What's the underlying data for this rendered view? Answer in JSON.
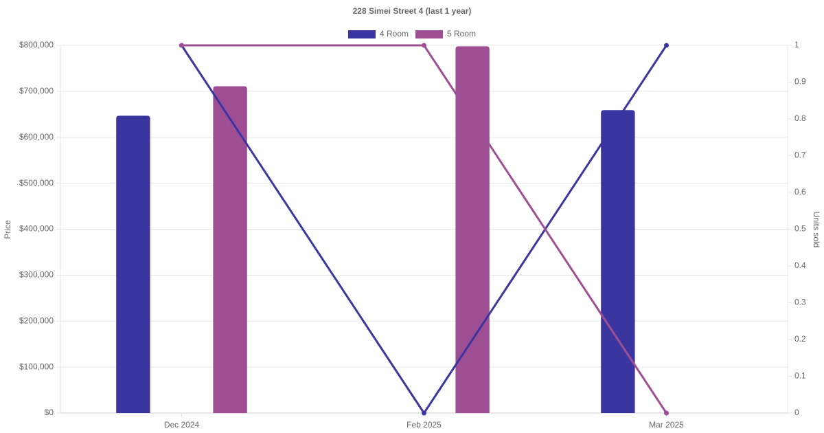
{
  "chart_data": {
    "type": "bar-line",
    "title": "228 Simei Street 4 (last 1 year)",
    "y_label": "Price",
    "y2_label": "Units sold",
    "categories": [
      "Dec 2024",
      "Feb 2025",
      "Mar 2025"
    ],
    "series": [
      {
        "name": "4 Room",
        "color": "#3b35a0",
        "values": [
          647000,
          null,
          659000
        ],
        "units_sold": [
          1,
          0,
          1
        ]
      },
      {
        "name": "5 Room",
        "color": "#9e4f94",
        "values": [
          711000,
          798000,
          null
        ],
        "units_sold": [
          1,
          1,
          0
        ]
      }
    ],
    "ylim": [
      0,
      800000
    ],
    "yticks": [
      {
        "value": 0,
        "label": "$0"
      },
      {
        "value": 100000,
        "label": "$100,000"
      },
      {
        "value": 200000,
        "label": "$200,000"
      },
      {
        "value": 300000,
        "label": "$300,000"
      },
      {
        "value": 400000,
        "label": "$400,000"
      },
      {
        "value": 500000,
        "label": "$500,000"
      },
      {
        "value": 600000,
        "label": "$600,000"
      },
      {
        "value": 700000,
        "label": "$700,000"
      },
      {
        "value": 800000,
        "label": "$800,000"
      }
    ],
    "y2lim": [
      0,
      1
    ],
    "y2ticks": [
      0,
      0.1,
      0.2,
      0.3,
      0.4,
      0.5,
      0.6,
      0.7,
      0.8,
      0.9,
      1
    ],
    "grid": true
  }
}
